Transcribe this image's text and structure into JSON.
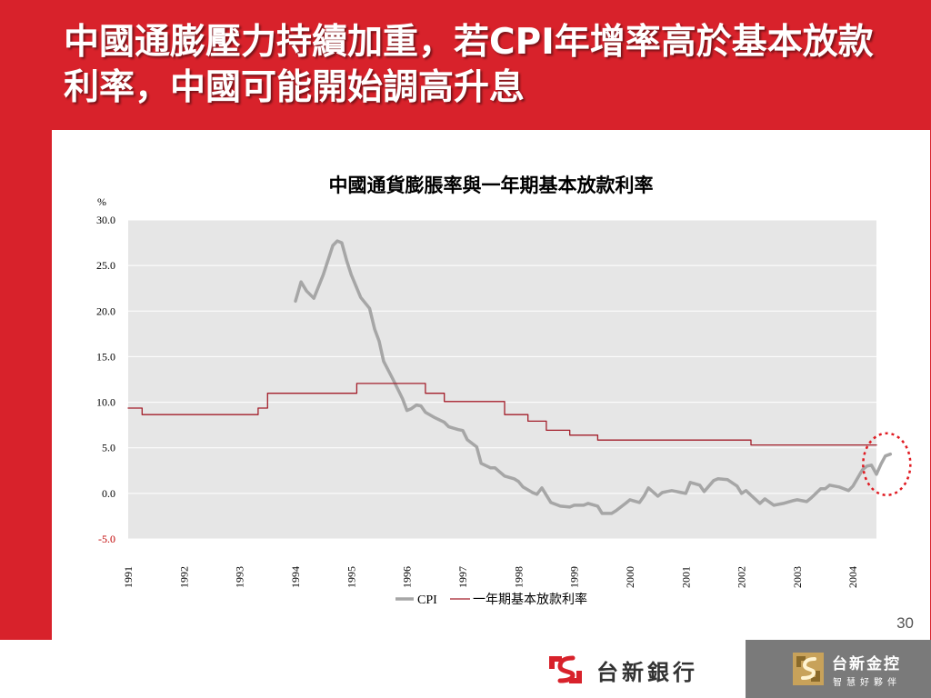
{
  "slide": {
    "title": "中國通膨壓力持續加重，若CPI年增率高於基本放款利率，中國可能開始調高升息",
    "page_number": "30"
  },
  "footer": {
    "bank_name": "台新銀行",
    "holdings_name": "台新金控",
    "holdings_slogan": "智慧好夥伴",
    "bank_logo_icon": "taishin-bank-logo-icon",
    "holdings_logo_icon": "taishin-holdings-logo-icon"
  },
  "colors": {
    "brand_red": "#d8222b",
    "cpi_line": "#a6a6a6",
    "rate_line": "#a31e2a",
    "plot_bg": "#e6e6e6",
    "highlight_circle": "#e01b22"
  },
  "chart_data": {
    "type": "line",
    "title": "中國通貨膨脹率與一年期基本放款利率",
    "ylabel": "%",
    "xlabel": "",
    "ylim": [
      -5,
      30
    ],
    "xlim": [
      1991.0,
      2004.42
    ],
    "yticks": [
      "30.0",
      "25.0",
      "20.0",
      "15.0",
      "10.0",
      "5.0",
      "0.0",
      "-5.0"
    ],
    "xticks": [
      "1991",
      "1992",
      "1993",
      "1994",
      "1995",
      "1996",
      "1997",
      "1998",
      "1999",
      "2000",
      "2001",
      "2002",
      "2003",
      "2004"
    ],
    "grid": true,
    "legend_position": "bottom",
    "annotation": "dotted red circle around latest CPI values (2004)",
    "series": [
      {
        "name": "CPI",
        "points": [
          [
            1994.0,
            21.1
          ],
          [
            1994.1,
            23.2
          ],
          [
            1994.2,
            22.2
          ],
          [
            1994.33,
            21.4
          ],
          [
            1994.5,
            24.0
          ],
          [
            1994.67,
            27.2
          ],
          [
            1994.75,
            27.7
          ],
          [
            1994.83,
            27.5
          ],
          [
            1994.92,
            25.5
          ],
          [
            1995.0,
            24.0
          ],
          [
            1995.17,
            21.5
          ],
          [
            1995.33,
            20.3
          ],
          [
            1995.42,
            18.0
          ],
          [
            1995.5,
            16.7
          ],
          [
            1995.58,
            14.5
          ],
          [
            1995.75,
            12.5
          ],
          [
            1995.92,
            10.4
          ],
          [
            1996.0,
            9.1
          ],
          [
            1996.08,
            9.3
          ],
          [
            1996.17,
            9.7
          ],
          [
            1996.25,
            9.6
          ],
          [
            1996.33,
            8.9
          ],
          [
            1996.5,
            8.3
          ],
          [
            1996.67,
            7.8
          ],
          [
            1996.75,
            7.3
          ],
          [
            1996.92,
            7.0
          ],
          [
            1997.0,
            6.9
          ],
          [
            1997.08,
            5.9
          ],
          [
            1997.25,
            5.1
          ],
          [
            1997.33,
            3.3
          ],
          [
            1997.5,
            2.8
          ],
          [
            1997.58,
            2.8
          ],
          [
            1997.75,
            1.9
          ],
          [
            1997.92,
            1.6
          ],
          [
            1998.0,
            1.3
          ],
          [
            1998.08,
            0.7
          ],
          [
            1998.25,
            0.1
          ],
          [
            1998.33,
            -0.1
          ],
          [
            1998.42,
            0.6
          ],
          [
            1998.58,
            -1.0
          ],
          [
            1998.75,
            -1.4
          ],
          [
            1998.92,
            -1.5
          ],
          [
            1999.0,
            -1.3
          ],
          [
            1999.17,
            -1.3
          ],
          [
            1999.25,
            -1.1
          ],
          [
            1999.42,
            -1.4
          ],
          [
            1999.5,
            -2.2
          ],
          [
            1999.67,
            -2.2
          ],
          [
            1999.75,
            -1.9
          ],
          [
            1999.92,
            -1.1
          ],
          [
            2000.0,
            -0.7
          ],
          [
            2000.17,
            -1.0
          ],
          [
            2000.25,
            -0.3
          ],
          [
            2000.33,
            0.6
          ],
          [
            2000.5,
            -0.3
          ],
          [
            2000.58,
            0.1
          ],
          [
            2000.75,
            0.3
          ],
          [
            2000.92,
            0.1
          ],
          [
            2001.0,
            0.0
          ],
          [
            2001.08,
            1.2
          ],
          [
            2001.25,
            0.9
          ],
          [
            2001.33,
            0.2
          ],
          [
            2001.5,
            1.4
          ],
          [
            2001.58,
            1.6
          ],
          [
            2001.75,
            1.5
          ],
          [
            2001.92,
            0.8
          ],
          [
            2002.0,
            0.0
          ],
          [
            2002.08,
            0.3
          ],
          [
            2002.17,
            -0.2
          ],
          [
            2002.33,
            -1.1
          ],
          [
            2002.42,
            -0.6
          ],
          [
            2002.58,
            -1.3
          ],
          [
            2002.75,
            -1.1
          ],
          [
            2002.92,
            -0.8
          ],
          [
            2003.0,
            -0.7
          ],
          [
            2003.17,
            -0.9
          ],
          [
            2003.25,
            -0.5
          ],
          [
            2003.42,
            0.5
          ],
          [
            2003.5,
            0.5
          ],
          [
            2003.58,
            0.9
          ],
          [
            2003.75,
            0.7
          ],
          [
            2003.92,
            0.3
          ],
          [
            2004.0,
            0.8
          ],
          [
            2004.17,
            2.6
          ],
          [
            2004.25,
            3.0
          ],
          [
            2004.33,
            3.1
          ],
          [
            2004.42,
            2.1
          ],
          [
            2004.5,
            3.2
          ],
          [
            2004.58,
            4.1
          ],
          [
            2004.67,
            4.3
          ]
        ]
      },
      {
        "name": "一年期基本放款利率",
        "points": [
          [
            1991.0,
            9.36
          ],
          [
            1991.25,
            9.36
          ],
          [
            1991.25,
            8.64
          ],
          [
            1993.33,
            8.64
          ],
          [
            1993.33,
            9.36
          ],
          [
            1993.5,
            9.36
          ],
          [
            1993.5,
            10.98
          ],
          [
            1995.1,
            10.98
          ],
          [
            1995.1,
            12.06
          ],
          [
            1996.33,
            12.06
          ],
          [
            1996.33,
            10.98
          ],
          [
            1996.67,
            10.98
          ],
          [
            1996.67,
            10.08
          ],
          [
            1997.75,
            10.08
          ],
          [
            1997.75,
            8.64
          ],
          [
            1998.17,
            8.64
          ],
          [
            1998.17,
            7.92
          ],
          [
            1998.5,
            7.92
          ],
          [
            1998.5,
            6.93
          ],
          [
            1998.92,
            6.93
          ],
          [
            1998.92,
            6.39
          ],
          [
            1999.42,
            6.39
          ],
          [
            1999.42,
            5.85
          ],
          [
            2002.17,
            5.85
          ],
          [
            2002.17,
            5.31
          ],
          [
            2004.42,
            5.31
          ]
        ]
      }
    ]
  }
}
